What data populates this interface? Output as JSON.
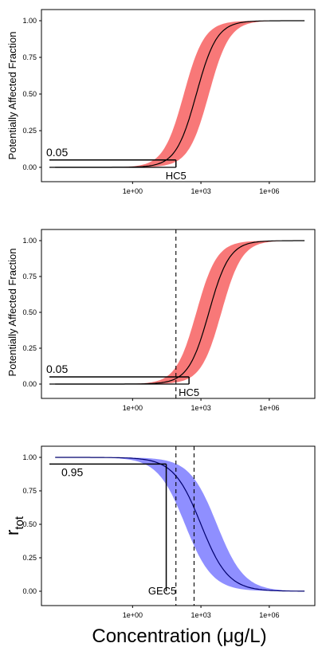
{
  "chart_data": [
    {
      "type": "line",
      "scale": "log10",
      "xlim": [
        0.0001,
        100000000
      ],
      "ylim": [
        0,
        1
      ],
      "x_ticks": [
        "1e+00",
        "1e+03",
        "1e+06"
      ],
      "y_ticks": [
        "0.00",
        "0.25",
        "0.50",
        "0.75",
        "1.00"
      ],
      "ylabel": "Potentially Affected Fraction",
      "xlabel": "",
      "band_color": "#f87171",
      "line_color": "#000000",
      "curve": {
        "log10_midpoint": 2.8,
        "log10_slope": 0.45,
        "band_log10_halfwidth": 0.55,
        "increasing": true
      },
      "annotations": {
        "threshold_label": "0.05",
        "threshold_value": 0.05,
        "threshold_x_end": 80,
        "hc_label": "HC5",
        "dashed_x": []
      }
    },
    {
      "type": "line",
      "scale": "log10",
      "xlim": [
        0.0001,
        100000000
      ],
      "ylim": [
        0,
        1
      ],
      "x_ticks": [
        "1e+00",
        "1e+03",
        "1e+06"
      ],
      "y_ticks": [
        "0.00",
        "0.25",
        "0.50",
        "0.75",
        "1.00"
      ],
      "ylabel": "Potentially Affected Fraction",
      "xlabel": "",
      "band_color": "#f87171",
      "line_color": "#000000",
      "curve": {
        "log10_midpoint": 3.35,
        "log10_slope": 0.45,
        "band_log10_halfwidth": 0.55,
        "increasing": true
      },
      "annotations": {
        "threshold_label": "0.05",
        "threshold_value": 0.05,
        "threshold_x_end": 300,
        "hc_label": "HC5",
        "dashed_x": [
          80
        ]
      }
    },
    {
      "type": "line",
      "scale": "log10",
      "xlim": [
        0.0001,
        100000000
      ],
      "ylim": [
        0,
        1
      ],
      "x_ticks": [
        "1e+00",
        "1e+03",
        "1e+06"
      ],
      "y_ticks": [
        "0.00",
        "0.25",
        "0.50",
        "0.75",
        "1.00"
      ],
      "ylabel_main": "r",
      "ylabel_sub": "tot",
      "xlabel": "Concentration (μg/L)",
      "band_color": "#7b7bff",
      "line_color": "#00006e",
      "curve": {
        "log10_midpoint": 3.0,
        "log10_slope": 0.6,
        "band_log10_halfwidth": 0.7,
        "increasing": false
      },
      "annotations": {
        "threshold_label": "0.95",
        "threshold_value": 0.95,
        "threshold_x_end": 30,
        "hc_label": "GEC5",
        "dashed_x": [
          80,
          500
        ]
      }
    }
  ]
}
